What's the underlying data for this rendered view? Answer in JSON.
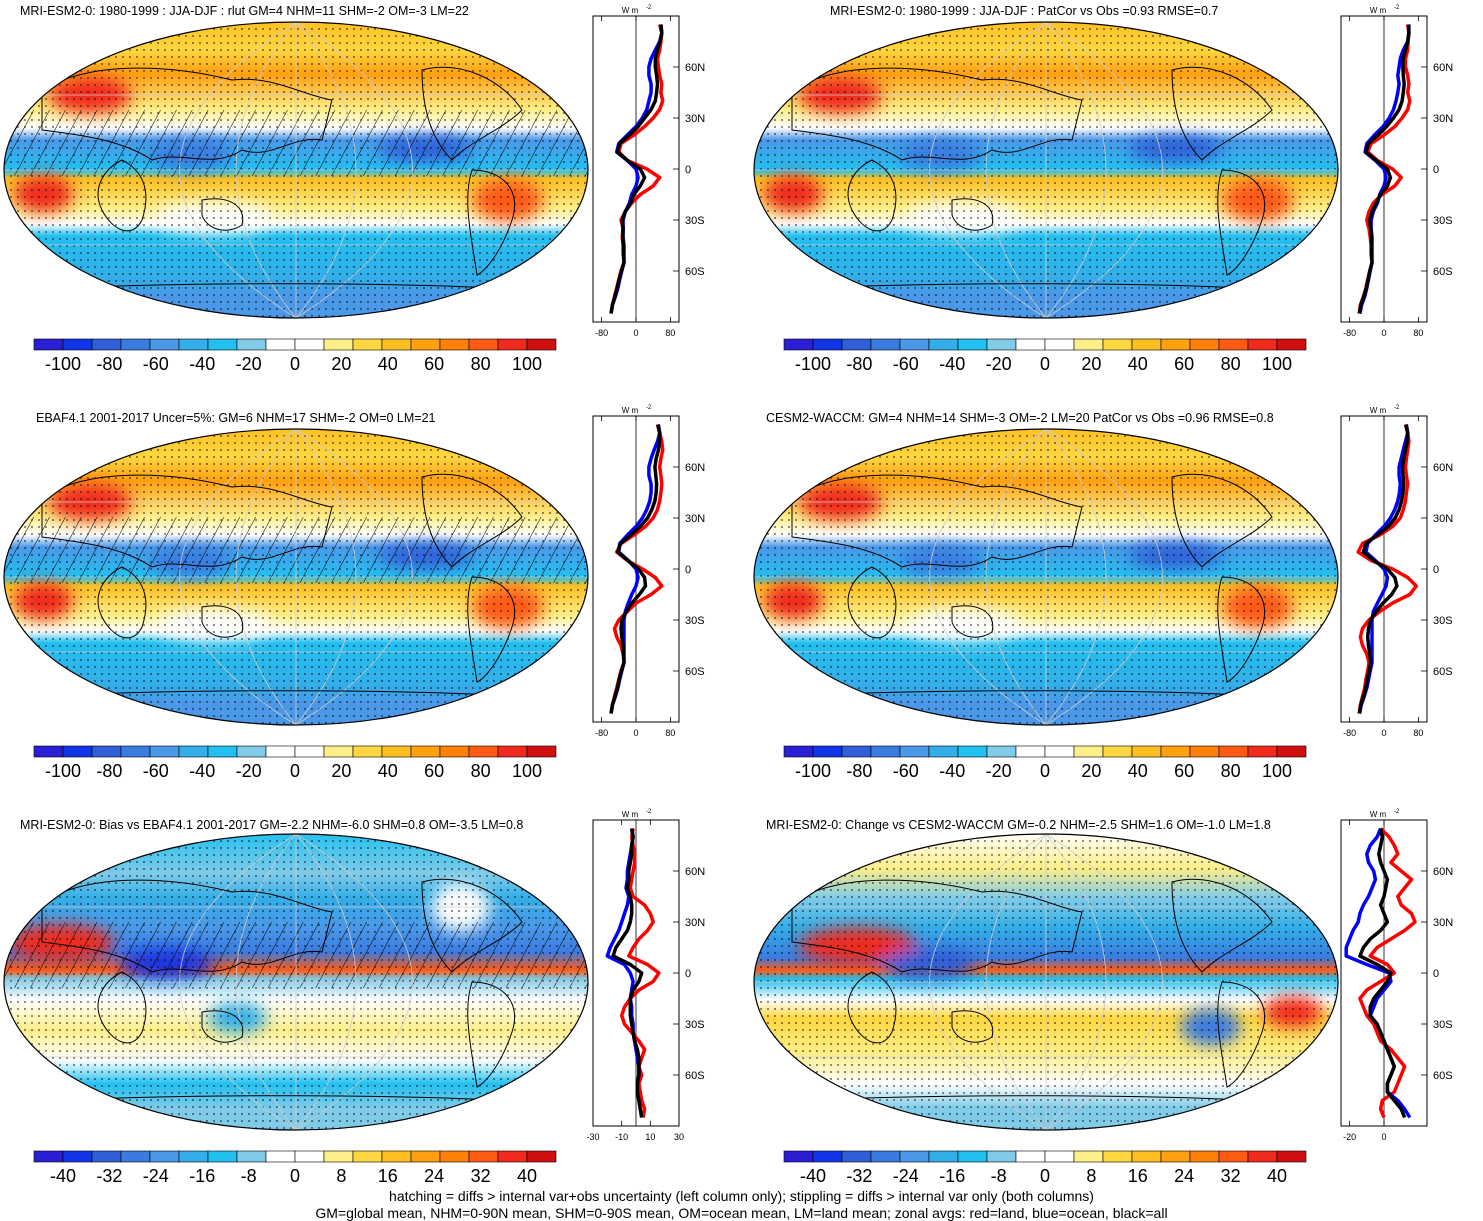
{
  "colors": {
    "scale": [
      "#2b1fd6",
      "#1235e8",
      "#2f5fd8",
      "#3a7be0",
      "#4b98e8",
      "#33aee8",
      "#22c0f0",
      "#7fcbe8",
      "#ffffff",
      "#ffffff",
      "#ffef8a",
      "#ffd740",
      "#ffbf20",
      "#ffa010",
      "#ff8008",
      "#ff5a14",
      "#f02a1c",
      "#d01010"
    ],
    "land": "#ff0000",
    "ocean": "#0000ff",
    "all": "#000000"
  },
  "panels": [
    {
      "id": "p1",
      "title": "MRI-ESM2-0: 1980-1999 : JJA-DJF : rlut GM=4 NHM=11 SHM=-2 OM=-3 LM=22",
      "map_style": "seasonal",
      "hatching": true
    },
    {
      "id": "p2",
      "title": "MRI-ESM2-0: 1980-1999 : JJA-DJF : PatCor vs Obs =0.93 RMSE=0.7",
      "map_style": "seasonal",
      "hatching": false
    },
    {
      "id": "p3",
      "title": "EBAF4.1 2001-2017 Uncer=5%: GM=6 NHM=17 SHM=-2 OM=0 LM=21",
      "map_style": "seasonal",
      "hatching": true
    },
    {
      "id": "p4",
      "title": "CESM2-WACCM: GM=4 NHM=14 SHM=-3 OM=-2 LM=20 PatCor vs Obs =0.96 RMSE=0.8",
      "map_style": "seasonal",
      "hatching": false
    },
    {
      "id": "p5",
      "title": "MRI-ESM2-0: Bias vs EBAF4.1 2001-2017 GM=-2.2 NHM=-6.0 SHM=0.8 OM=-3.5 LM=0.8",
      "map_style": "bias",
      "hatching": true
    },
    {
      "id": "p6",
      "title": "MRI-ESM2-0: Change vs CESM2-WACCM GM=-0.2 NHM=-2.5 SHM=1.6 OM=-1.0 LM=1.8",
      "map_style": "change",
      "hatching": false
    }
  ],
  "colorbars": {
    "large": {
      "labels": [
        "-100",
        "-80",
        "-60",
        "-40",
        "-20",
        "0",
        "20",
        "40",
        "60",
        "80",
        "100"
      ]
    },
    "small": {
      "labels": [
        "-40",
        "-32",
        "-24",
        "-16",
        "-8",
        "0",
        "8",
        "16",
        "24",
        "32",
        "40"
      ]
    }
  },
  "zonal_units": "W m",
  "zonal_units_sup": "-2",
  "chart_data": [
    {
      "type": "line",
      "panel": "p1",
      "xlabel": "W m-2",
      "xlim": [
        -100,
        100
      ],
      "xticks": [
        "-80",
        "0",
        "80"
      ],
      "ylim": [
        -90,
        90
      ],
      "yticks": [
        "60N",
        "30N",
        "0",
        "30S",
        "60S"
      ],
      "lat": [
        85,
        80,
        75,
        70,
        65,
        60,
        55,
        50,
        45,
        40,
        35,
        30,
        25,
        20,
        15,
        10,
        5,
        0,
        -5,
        -10,
        -15,
        -20,
        -25,
        -30,
        -35,
        -40,
        -45,
        -50,
        -55,
        -60,
        -65,
        -70,
        -75,
        -80,
        -85
      ],
      "series": [
        {
          "name": "land",
          "values": [
            55,
            60,
            58,
            55,
            50,
            52,
            55,
            60,
            58,
            62,
            55,
            40,
            20,
            -5,
            -35,
            -40,
            -20,
            25,
            55,
            40,
            10,
            -10,
            -25,
            -35,
            -30,
            -32,
            -30,
            -30,
            -28,
            -35,
            -40,
            -45,
            -50,
            -55,
            -58
          ]
        },
        {
          "name": "ocean",
          "values": [
            58,
            60,
            55,
            45,
            35,
            30,
            30,
            35,
            35,
            30,
            25,
            15,
            0,
            -20,
            -40,
            -45,
            -20,
            0,
            5,
            0,
            -10,
            -15,
            -25,
            -30,
            -30,
            -30,
            -28,
            -28,
            -28,
            -33,
            -38,
            -42,
            -48,
            -55,
            -58
          ]
        },
        {
          "name": "all",
          "values": [
            58,
            60,
            56,
            50,
            45,
            45,
            48,
            50,
            48,
            45,
            35,
            20,
            5,
            -15,
            -38,
            -43,
            -20,
            10,
            20,
            10,
            -5,
            -12,
            -25,
            -32,
            -30,
            -31,
            -29,
            -29,
            -28,
            -34,
            -39,
            -44,
            -49,
            -55,
            -58
          ]
        }
      ]
    },
    {
      "type": "line",
      "panel": "p2",
      "xlabel": "W m-2",
      "xlim": [
        -100,
        100
      ],
      "xticks": [
        "-80",
        "0",
        "80"
      ],
      "ylim": [
        -90,
        90
      ],
      "yticks": [
        "60N",
        "30N",
        "0",
        "30S",
        "60S"
      ],
      "lat": [
        85,
        80,
        75,
        70,
        65,
        60,
        55,
        50,
        45,
        40,
        35,
        30,
        25,
        20,
        15,
        10,
        5,
        0,
        -5,
        -10,
        -15,
        -20,
        -25,
        -30,
        -35,
        -40,
        -45,
        -50,
        -55,
        -60,
        -65,
        -70,
        -75,
        -80,
        -85
      ],
      "series": [
        {
          "name": "land",
          "values": [
            55,
            58,
            56,
            55,
            50,
            50,
            55,
            58,
            55,
            60,
            55,
            42,
            25,
            0,
            -30,
            -38,
            -15,
            20,
            40,
            25,
            -5,
            -25,
            -35,
            -40,
            -35,
            -32,
            -30,
            -30,
            -28,
            -33,
            -38,
            -42,
            -48,
            -55,
            -58
          ]
        },
        {
          "name": "ocean",
          "values": [
            58,
            58,
            55,
            45,
            38,
            35,
            32,
            35,
            32,
            28,
            22,
            12,
            -2,
            -22,
            -40,
            -44,
            -20,
            0,
            5,
            0,
            -10,
            -15,
            -25,
            -30,
            -30,
            -28,
            -28,
            -28,
            -28,
            -32,
            -36,
            -40,
            -45,
            -52,
            -56
          ]
        },
        {
          "name": "all",
          "values": [
            57,
            58,
            55,
            50,
            45,
            44,
            45,
            47,
            45,
            42,
            35,
            22,
            6,
            -14,
            -36,
            -42,
            -18,
            8,
            15,
            8,
            -8,
            -18,
            -28,
            -33,
            -31,
            -29,
            -29,
            -29,
            -28,
            -33,
            -37,
            -41,
            -47,
            -54,
            -57
          ]
        }
      ]
    },
    {
      "type": "line",
      "panel": "p3",
      "xlabel": "W m-2",
      "xlim": [
        -100,
        100
      ],
      "xticks": [
        "-80",
        "0",
        "80"
      ],
      "ylim": [
        -90,
        90
      ],
      "yticks": [
        "60N",
        "30N",
        "0",
        "30S",
        "60S"
      ],
      "lat": [
        85,
        80,
        75,
        70,
        65,
        60,
        55,
        50,
        45,
        40,
        35,
        30,
        25,
        20,
        15,
        10,
        5,
        0,
        -5,
        -10,
        -15,
        -20,
        -25,
        -30,
        -35,
        -40,
        -45,
        -50,
        -55,
        -60,
        -65,
        -70,
        -75,
        -80,
        -85
      ],
      "series": [
        {
          "name": "land",
          "values": [
            50,
            55,
            60,
            62,
            58,
            55,
            58,
            60,
            58,
            55,
            50,
            40,
            22,
            -5,
            -35,
            -45,
            -20,
            15,
            45,
            60,
            35,
            0,
            -20,
            -40,
            -50,
            -45,
            -35,
            -30,
            -28,
            -35,
            -40,
            -45,
            -50,
            -55,
            -58
          ]
        },
        {
          "name": "ocean",
          "values": [
            52,
            55,
            50,
            42,
            35,
            30,
            30,
            35,
            35,
            32,
            25,
            15,
            0,
            -20,
            -38,
            -40,
            -18,
            0,
            5,
            0,
            -10,
            -18,
            -25,
            -28,
            -28,
            -28,
            -28,
            -28,
            -28,
            -33,
            -38,
            -42,
            -48,
            -55,
            -58
          ]
        },
        {
          "name": "all",
          "values": [
            51,
            55,
            55,
            52,
            47,
            44,
            46,
            48,
            47,
            44,
            37,
            27,
            10,
            -12,
            -36,
            -42,
            -19,
            6,
            20,
            22,
            8,
            -10,
            -22,
            -33,
            -35,
            -33,
            -30,
            -29,
            -28,
            -34,
            -39,
            -43,
            -49,
            -55,
            -58
          ]
        }
      ]
    },
    {
      "type": "line",
      "panel": "p4",
      "xlabel": "W m-2",
      "xlim": [
        -100,
        100
      ],
      "xticks": [
        "-80",
        "0",
        "80"
      ],
      "ylim": [
        -90,
        90
      ],
      "yticks": [
        "60N",
        "30N",
        "0",
        "30S",
        "60S"
      ],
      "lat": [
        85,
        80,
        75,
        70,
        65,
        60,
        55,
        50,
        45,
        40,
        35,
        30,
        25,
        20,
        15,
        10,
        5,
        0,
        -5,
        -10,
        -15,
        -20,
        -25,
        -30,
        -35,
        -40,
        -45,
        -50,
        -55,
        -60,
        -65,
        -70,
        -75,
        -80,
        -85
      ],
      "series": [
        {
          "name": "land",
          "values": [
            50,
            55,
            58,
            55,
            52,
            50,
            52,
            55,
            52,
            50,
            45,
            38,
            20,
            -10,
            -50,
            -60,
            -30,
            20,
            55,
            75,
            60,
            20,
            -10,
            -35,
            -50,
            -55,
            -50,
            -40,
            -35,
            -38,
            -42,
            -45,
            -50,
            -55,
            -58
          ]
        },
        {
          "name": "ocean",
          "values": [
            52,
            55,
            50,
            45,
            40,
            35,
            35,
            38,
            36,
            32,
            25,
            15,
            0,
            -20,
            -38,
            -42,
            -20,
            0,
            8,
            5,
            -5,
            -15,
            -25,
            -28,
            -28,
            -28,
            -28,
            -28,
            -28,
            -32,
            -36,
            -40,
            -46,
            -53,
            -57
          ]
        },
        {
          "name": "all",
          "values": [
            51,
            55,
            54,
            50,
            46,
            43,
            44,
            46,
            44,
            41,
            35,
            26,
            10,
            -15,
            -42,
            -48,
            -24,
            8,
            25,
            30,
            18,
            -2,
            -18,
            -31,
            -36,
            -38,
            -36,
            -33,
            -31,
            -35,
            -39,
            -42,
            -48,
            -54,
            -57
          ]
        }
      ]
    },
    {
      "type": "line",
      "panel": "p5",
      "xlabel": "W m-2",
      "xlim": [
        -30,
        30
      ],
      "xticks": [
        "-30",
        "-10",
        "10",
        "30"
      ],
      "ylim": [
        -90,
        90
      ],
      "yticks": [
        "60N",
        "30N",
        "0",
        "30S",
        "60S"
      ],
      "lat": [
        85,
        80,
        75,
        70,
        65,
        60,
        55,
        50,
        45,
        40,
        35,
        30,
        25,
        20,
        15,
        10,
        5,
        0,
        -5,
        -10,
        -15,
        -20,
        -25,
        -30,
        -35,
        -40,
        -45,
        -50,
        -55,
        -60,
        -65,
        -70,
        -75,
        -80,
        -85
      ],
      "series": [
        {
          "name": "land",
          "values": [
            -2,
            -3,
            -2,
            -1,
            -1,
            -2,
            -3,
            -4,
            -2,
            6,
            10,
            12,
            8,
            2,
            -2,
            -5,
            8,
            16,
            12,
            2,
            -4,
            -8,
            -10,
            -8,
            -3,
            2,
            6,
            4,
            2,
            4,
            2,
            3,
            4,
            6,
            5
          ]
        },
        {
          "name": "ocean",
          "values": [
            -3,
            -2,
            -3,
            -4,
            -5,
            -6,
            -6,
            -7,
            -5,
            -6,
            -8,
            -10,
            -12,
            -15,
            -18,
            -20,
            -8,
            -4,
            -2,
            -3,
            -4,
            -3,
            -3,
            -2,
            -2,
            -1,
            0,
            1,
            2,
            2,
            1,
            1,
            2,
            3,
            4
          ]
        },
        {
          "name": "all",
          "values": [
            -3,
            -2,
            -3,
            -3,
            -4,
            -5,
            -5,
            -6,
            -4,
            -3,
            -3,
            -4,
            -6,
            -10,
            -14,
            -16,
            -4,
            4,
            2,
            -2,
            -4,
            -4,
            -4,
            -3,
            -2,
            -1,
            1,
            2,
            2,
            2,
            1,
            1,
            2,
            3,
            4
          ]
        }
      ]
    },
    {
      "type": "line",
      "panel": "p6",
      "xlabel": "W m-2",
      "xlim": [
        -25,
        25
      ],
      "xticks": [
        "-20",
        "0"
      ],
      "ylim": [
        -90,
        90
      ],
      "yticks": [
        "60N",
        "30N",
        "0",
        "30S",
        "60S"
      ],
      "lat": [
        85,
        80,
        75,
        70,
        65,
        60,
        55,
        50,
        45,
        40,
        35,
        30,
        25,
        20,
        15,
        10,
        5,
        0,
        -5,
        -10,
        -15,
        -20,
        -25,
        -30,
        -35,
        -40,
        -45,
        -50,
        -55,
        -60,
        -65,
        -70,
        -75,
        -80,
        -85
      ],
      "series": [
        {
          "name": "land",
          "values": [
            -2,
            3,
            6,
            8,
            4,
            10,
            16,
            12,
            8,
            10,
            16,
            18,
            12,
            4,
            -4,
            -8,
            2,
            6,
            -2,
            -10,
            -14,
            -12,
            -10,
            -6,
            -4,
            -2,
            4,
            8,
            12,
            10,
            8,
            6,
            -1,
            -2,
            0
          ]
        },
        {
          "name": "ocean",
          "values": [
            -2,
            -4,
            -8,
            -10,
            -9,
            -6,
            -5,
            -7,
            -9,
            -12,
            -14,
            -15,
            -18,
            -20,
            -22,
            -22,
            -10,
            3,
            4,
            0,
            -4,
            -6,
            -8,
            -4,
            -2,
            0,
            2,
            4,
            6,
            4,
            2,
            2,
            8,
            12,
            15
          ]
        },
        {
          "name": "all",
          "values": [
            -2,
            -1,
            -2,
            -3,
            -2,
            0,
            2,
            1,
            0,
            -2,
            0,
            2,
            -2,
            -8,
            -12,
            -14,
            -4,
            4,
            2,
            -2,
            -6,
            -8,
            -8,
            -4,
            -2,
            0,
            2,
            4,
            6,
            4,
            2,
            2,
            6,
            10,
            12
          ]
        }
      ]
    }
  ],
  "footer": {
    "line1": "hatching = diffs > internal var+obs uncertainty (left column only); stippling = diffs > internal var only (both columns)",
    "line2": "GM=global mean, NHM=0-90N mean, SHM=0-90S mean, OM=ocean mean, LM=land mean; zonal avgs: red=land, blue=ocean, black=all"
  }
}
